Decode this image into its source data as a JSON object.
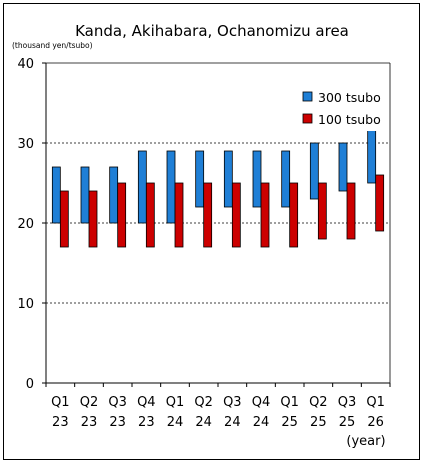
{
  "chart_data": {
    "type": "bar",
    "title": "Kanda, Akihabara, Ochanomizu area",
    "unit_label": "(thousand yen/tsubo)",
    "xlabel": "(year)",
    "ylabel": "",
    "ylim": [
      0,
      40
    ],
    "yticks": [
      0,
      10,
      20,
      30,
      40
    ],
    "grid": true,
    "legend_position": "top-right",
    "categories": [
      {
        "quarter": "Q1",
        "year": "23"
      },
      {
        "quarter": "Q2",
        "year": "23"
      },
      {
        "quarter": "Q3",
        "year": "23"
      },
      {
        "quarter": "Q4",
        "year": "23"
      },
      {
        "quarter": "Q1",
        "year": "24"
      },
      {
        "quarter": "Q2",
        "year": "24"
      },
      {
        "quarter": "Q3",
        "year": "24"
      },
      {
        "quarter": "Q4",
        "year": "24"
      },
      {
        "quarter": "Q1",
        "year": "25"
      },
      {
        "quarter": "Q2",
        "year": "25"
      },
      {
        "quarter": "Q3",
        "year": "25"
      },
      {
        "quarter": "Q1",
        "year": "26"
      }
    ],
    "series": [
      {
        "name": "300 tsubo",
        "color": "#1f7fd6",
        "ranges": [
          [
            20,
            27
          ],
          [
            20,
            27
          ],
          [
            20,
            27
          ],
          [
            20,
            29
          ],
          [
            20,
            29
          ],
          [
            22,
            29
          ],
          [
            22,
            29
          ],
          [
            22,
            29
          ],
          [
            22,
            29
          ],
          [
            23,
            30
          ],
          [
            24,
            30
          ],
          [
            25,
            32
          ]
        ]
      },
      {
        "name": "100 tsubo",
        "color": "#cc0000",
        "ranges": [
          [
            17,
            24
          ],
          [
            17,
            24
          ],
          [
            17,
            25
          ],
          [
            17,
            25
          ],
          [
            17,
            25
          ],
          [
            17,
            25
          ],
          [
            17,
            25
          ],
          [
            17,
            25
          ],
          [
            17,
            25
          ],
          [
            18,
            25
          ],
          [
            18,
            25
          ],
          [
            19,
            26
          ]
        ]
      }
    ]
  }
}
